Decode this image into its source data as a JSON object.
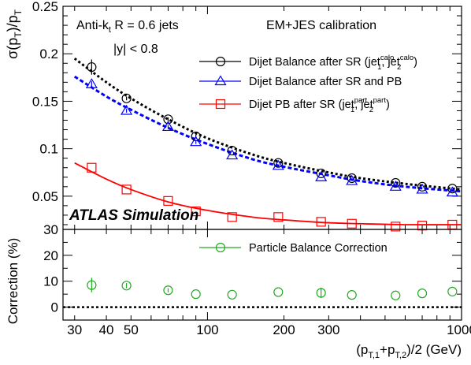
{
  "chart_data": [
    {
      "type": "scatter",
      "panel": "top",
      "x_scale": "log",
      "xlim": [
        27,
        1000
      ],
      "ylim": [
        0.015,
        0.25
      ],
      "ylabel": {
        "base": "σ(p",
        "sub1": "T",
        "mid": ")/p",
        "sub2": "T"
      },
      "yticks": [
        0.05,
        0.1,
        0.15,
        0.2,
        0.25
      ],
      "ytick_labels": [
        "0.05",
        "0.1",
        "0.15",
        "0.2",
        "0.25"
      ],
      "grid": false,
      "legend_position": "top-right",
      "annotations": {
        "jets": {
          "pre": "Anti-k",
          "sub": "t",
          "post": " R = 0.6 jets"
        },
        "rapidity": "|y| < 0.8",
        "calibration": "EM+JES calibration",
        "experiment": "ATLAS Simulation"
      },
      "series": [
        {
          "name": "Dijet Balance after SR (jet1calo, jet2calo)",
          "legend": {
            "text": "Dijet Balance after SR (jet",
            "s1sub": "1",
            "s1sup": "calo",
            "sep": ", jet",
            "s2sub": "2",
            "s2sup": "calo",
            "close": ")"
          },
          "color": "#000000",
          "marker": "circle",
          "x": [
            35,
            48,
            70,
            90,
            125,
            190,
            280,
            370,
            550,
            700,
            920
          ],
          "y": [
            0.186,
            0.153,
            0.131,
            0.113,
            0.098,
            0.085,
            0.074,
            0.069,
            0.064,
            0.06,
            0.058
          ],
          "yerr": [
            0.008,
            0.002,
            0.002,
            0.002,
            0.001,
            0.001,
            0.001,
            0.001,
            0.001,
            0.001,
            0.001
          ],
          "fit": {
            "color": "#000000",
            "style": "dotted",
            "x": [
              30,
              40,
              50,
              70,
              100,
              150,
              200,
              300,
              400,
              600,
              1000
            ],
            "y": [
              0.195,
              0.17,
              0.153,
              0.131,
              0.111,
              0.094,
              0.085,
              0.075,
              0.069,
              0.063,
              0.057
            ]
          }
        },
        {
          "name": "Dijet Balance after SR and PB",
          "legend": {
            "text": "Dijet Balance after SR and PB"
          },
          "color": "#0000ff",
          "marker": "triangle",
          "x": [
            35,
            48,
            70,
            90,
            125,
            190,
            280,
            370,
            550,
            700,
            920
          ],
          "y": [
            0.168,
            0.14,
            0.123,
            0.107,
            0.093,
            0.082,
            0.07,
            0.066,
            0.06,
            0.057,
            0.054
          ],
          "yerr": [
            0.003,
            0.002,
            0.002,
            0.002,
            0.001,
            0.001,
            0.001,
            0.001,
            0.001,
            0.001,
            0.001
          ],
          "fit": {
            "color": "#0000ff",
            "style": "dashed",
            "x": [
              30,
              40,
              50,
              70,
              100,
              150,
              200,
              300,
              400,
              600,
              1000
            ],
            "y": [
              0.176,
              0.155,
              0.141,
              0.122,
              0.105,
              0.089,
              0.081,
              0.072,
              0.066,
              0.06,
              0.055
            ]
          }
        },
        {
          "name": "Dijet PB after SR (jet1part, jet2part)",
          "legend": {
            "text": "Dijet PB after SR (jet",
            "s1sub": "1",
            "s1sup": "part",
            "sep": ", jet",
            "s2sub": "2",
            "s2sup": "part",
            "close": ")"
          },
          "color": "#ff0000",
          "marker": "square",
          "x": [
            35,
            48,
            70,
            90,
            125,
            190,
            280,
            370,
            550,
            700,
            920
          ],
          "y": [
            0.08,
            0.057,
            0.045,
            0.034,
            0.028,
            0.028,
            0.023,
            0.021,
            0.018,
            0.019,
            0.02
          ],
          "fit": {
            "color": "#ff0000",
            "style": "solid",
            "x": [
              30,
              40,
              50,
              70,
              100,
              150,
              200,
              300,
              400,
              600,
              1000
            ],
            "y": [
              0.085,
              0.068,
              0.057,
              0.044,
              0.035,
              0.028,
              0.025,
              0.022,
              0.021,
              0.02,
              0.02
            ]
          }
        }
      ]
    },
    {
      "type": "scatter",
      "panel": "bottom",
      "x_scale": "log",
      "xlim": [
        27,
        1000
      ],
      "ylim": [
        -5,
        30
      ],
      "ylabel": "Correction (%)",
      "yticks": [
        0,
        10,
        20,
        30
      ],
      "ytick_labels": [
        "0",
        "10",
        "20",
        "30"
      ],
      "xticks": [
        30,
        40,
        50,
        100,
        200,
        300,
        1000
      ],
      "xtick_labels": [
        "30",
        "40",
        "50",
        "100",
        "200",
        "300",
        "1000"
      ],
      "xlabel": {
        "a": "(p",
        "s1": "T,1",
        "b": "+p",
        "s2": "T,2",
        "c": ")/2 (GeV)"
      },
      "reference_line": {
        "y": 0,
        "style": "dotted",
        "color": "#000000"
      },
      "series": [
        {
          "name": "Particle Balance Correction",
          "color": "#22aa22",
          "marker": "circle",
          "x": [
            35,
            48,
            70,
            90,
            125,
            190,
            280,
            370,
            550,
            700,
            920
          ],
          "y": [
            8.5,
            8.3,
            6.5,
            5.0,
            4.8,
            5.8,
            5.5,
            4.7,
            4.5,
            5.3,
            6.0
          ],
          "yerr": [
            2.8,
            1.0,
            0.8,
            0.6,
            0.5,
            0.6,
            2.0,
            0.5,
            0.5,
            0.5,
            0.5
          ]
        }
      ]
    }
  ]
}
